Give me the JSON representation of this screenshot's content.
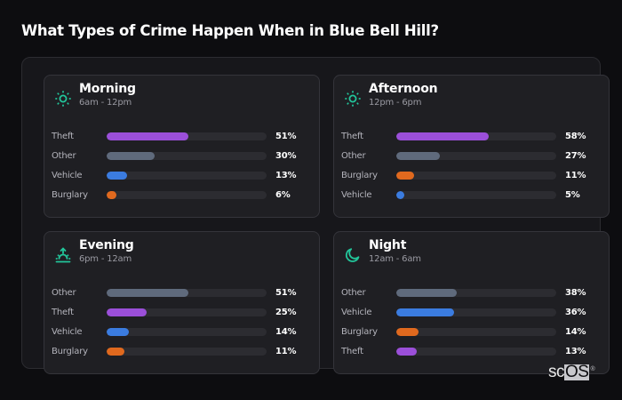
{
  "page": {
    "title": "What Types of Crime Happen When in Blue Bell Hill?"
  },
  "colors": {
    "background": "#0d0d10",
    "panel": "#17171b",
    "card": "#1f1f23",
    "track": "#2c2c31",
    "accent_icon": "#22c59a",
    "theft": "#9b4fd9",
    "other": "#5f6a7c",
    "vehicle": "#3b7ce0",
    "burglary": "#e0691e"
  },
  "cards": [
    {
      "title": "Morning",
      "subtitle": "6am - 12pm",
      "icon": "sun-icon",
      "rows": [
        {
          "label": "Theft",
          "value": "51%",
          "pct": 51,
          "color": "#9b4fd9"
        },
        {
          "label": "Other",
          "value": "30%",
          "pct": 30,
          "color": "#5f6a7c"
        },
        {
          "label": "Vehicle",
          "value": "13%",
          "pct": 13,
          "color": "#3b7ce0"
        },
        {
          "label": "Burglary",
          "value": "6%",
          "pct": 6,
          "color": "#e0691e"
        }
      ]
    },
    {
      "title": "Afternoon",
      "subtitle": "12pm - 6pm",
      "icon": "sun-icon",
      "rows": [
        {
          "label": "Theft",
          "value": "58%",
          "pct": 58,
          "color": "#9b4fd9"
        },
        {
          "label": "Other",
          "value": "27%",
          "pct": 27,
          "color": "#5f6a7c"
        },
        {
          "label": "Burglary",
          "value": "11%",
          "pct": 11,
          "color": "#e0691e"
        },
        {
          "label": "Vehicle",
          "value": "5%",
          "pct": 5,
          "color": "#3b7ce0"
        }
      ]
    },
    {
      "title": "Evening",
      "subtitle": "6pm - 12am",
      "icon": "sunset-icon",
      "rows": [
        {
          "label": "Other",
          "value": "51%",
          "pct": 51,
          "color": "#5f6a7c"
        },
        {
          "label": "Theft",
          "value": "25%",
          "pct": 25,
          "color": "#9b4fd9"
        },
        {
          "label": "Vehicle",
          "value": "14%",
          "pct": 14,
          "color": "#3b7ce0"
        },
        {
          "label": "Burglary",
          "value": "11%",
          "pct": 11,
          "color": "#e0691e"
        }
      ]
    },
    {
      "title": "Night",
      "subtitle": "12am - 6am",
      "icon": "moon-icon",
      "rows": [
        {
          "label": "Other",
          "value": "38%",
          "pct": 38,
          "color": "#5f6a7c"
        },
        {
          "label": "Vehicle",
          "value": "36%",
          "pct": 36,
          "color": "#3b7ce0"
        },
        {
          "label": "Burglary",
          "value": "14%",
          "pct": 14,
          "color": "#e0691e"
        },
        {
          "label": "Theft",
          "value": "13%",
          "pct": 13,
          "color": "#9b4fd9"
        }
      ]
    }
  ],
  "logo": {
    "part1": "sc",
    "part2": "OS",
    "mark": "®"
  },
  "chart_data": [
    {
      "type": "bar",
      "orientation": "horizontal",
      "title": "Morning",
      "subtitle": "6am - 12pm",
      "categories": [
        "Theft",
        "Other",
        "Vehicle",
        "Burglary"
      ],
      "values": [
        51,
        30,
        13,
        6
      ],
      "unit": "%",
      "xlim": [
        0,
        100
      ]
    },
    {
      "type": "bar",
      "orientation": "horizontal",
      "title": "Afternoon",
      "subtitle": "12pm - 6pm",
      "categories": [
        "Theft",
        "Other",
        "Burglary",
        "Vehicle"
      ],
      "values": [
        58,
        27,
        11,
        5
      ],
      "unit": "%",
      "xlim": [
        0,
        100
      ]
    },
    {
      "type": "bar",
      "orientation": "horizontal",
      "title": "Evening",
      "subtitle": "6pm - 12am",
      "categories": [
        "Other",
        "Theft",
        "Vehicle",
        "Burglary"
      ],
      "values": [
        51,
        25,
        14,
        11
      ],
      "unit": "%",
      "xlim": [
        0,
        100
      ]
    },
    {
      "type": "bar",
      "orientation": "horizontal",
      "title": "Night",
      "subtitle": "12am - 6am",
      "categories": [
        "Other",
        "Vehicle",
        "Burglary",
        "Theft"
      ],
      "values": [
        38,
        36,
        14,
        13
      ],
      "unit": "%",
      "xlim": [
        0,
        100
      ]
    }
  ]
}
